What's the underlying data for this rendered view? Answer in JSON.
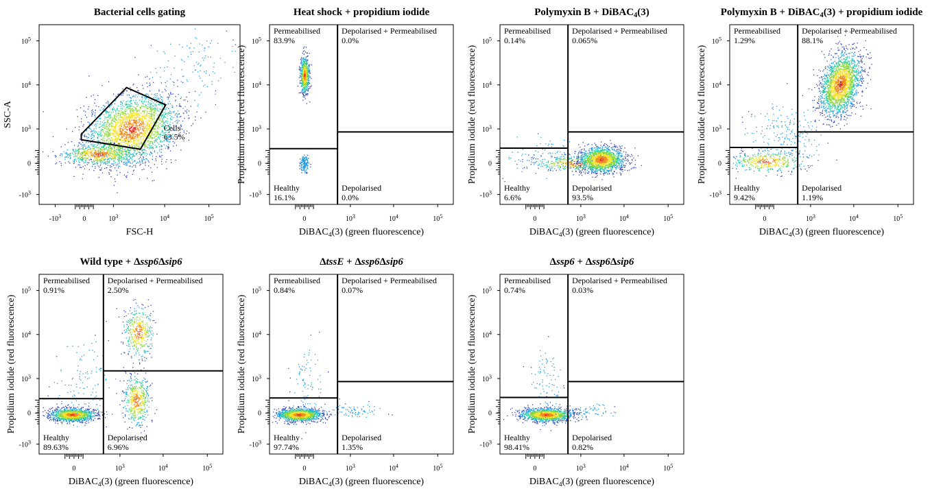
{
  "figure": {
    "panels": [
      {
        "id": "gating",
        "title_runs": [
          {
            "t": "Bacterial cells gating",
            "s": ""
          }
        ],
        "xlabel": "FSC-H",
        "ylabel": "SSC-A",
        "x_ticks": [
          "-10",
          "0",
          "10",
          "10",
          "10"
        ],
        "x_tick_exp": [
          "3",
          "",
          "3",
          "4",
          "5"
        ],
        "y_ticks": [
          "10",
          "10",
          "10",
          "0",
          "-10"
        ],
        "y_tick_exp": [
          "5",
          "4",
          "3",
          "",
          "3"
        ],
        "gate": {
          "name": "Cells",
          "percent": "63.5%"
        }
      },
      {
        "id": "heat-shock",
        "title_runs": [
          {
            "t": "Heat shock + propidium iodide",
            "s": ""
          }
        ],
        "xlabel_runs": [
          {
            "t": "DiBAC",
            "s": ""
          },
          {
            "t": "4",
            "s": "sub"
          },
          {
            "t": "(3) (green fluorescence)",
            "s": ""
          }
        ],
        "ylabel": "Propidium iodide (red fluorescence)",
        "x_ticks": [
          "0",
          "10",
          "10",
          "10"
        ],
        "x_tick_exp": [
          "",
          "3",
          "4",
          "5"
        ],
        "y_ticks": [
          "10",
          "10",
          "10",
          "0",
          "-10"
        ],
        "y_tick_exp": [
          "5",
          "4",
          "3",
          "",
          "3"
        ],
        "quadrants": {
          "top_left": {
            "label": "Permeabilised",
            "value": "83.9%"
          },
          "top_right": {
            "label": "Depolarised + Permeabilised",
            "value": "0.0%"
          },
          "bottom_left": {
            "label": "Healthy",
            "value": "16.1%"
          },
          "bottom_right": {
            "label": "Depolarised",
            "value": "0.0%"
          }
        }
      },
      {
        "id": "polymyxin-dibac",
        "title_runs": [
          {
            "t": "Polymyxin B + DiBAC",
            "s": ""
          },
          {
            "t": "4",
            "s": "sub"
          },
          {
            "t": "(3)",
            "s": ""
          }
        ],
        "xlabel_runs": [
          {
            "t": "DiBAC",
            "s": ""
          },
          {
            "t": "4",
            "s": "sub"
          },
          {
            "t": "(3) (green fluorescence)",
            "s": ""
          }
        ],
        "ylabel": "Propidium iodide (red fluorescence)",
        "x_ticks": [
          "0",
          "10",
          "10",
          "10"
        ],
        "x_tick_exp": [
          "",
          "3",
          "4",
          "5"
        ],
        "y_ticks": [
          "10",
          "10",
          "10",
          "0",
          "-10"
        ],
        "y_tick_exp": [
          "5",
          "4",
          "3",
          "",
          "3"
        ],
        "quadrants": {
          "top_left": {
            "label": "Permeabilised",
            "value": "0.14%"
          },
          "top_right": {
            "label": "Depolarised + Permeabilised",
            "value": "0.065%"
          },
          "bottom_left": {
            "label": "Healthy",
            "value": "6.6%"
          },
          "bottom_right": {
            "label": "Depolarised",
            "value": "93.5%"
          }
        }
      },
      {
        "id": "polymyxin-dibac-pi",
        "title_runs": [
          {
            "t": "Polymyxin B + DiBAC",
            "s": ""
          },
          {
            "t": "4",
            "s": "sub"
          },
          {
            "t": "(3) + propidium iodide",
            "s": ""
          }
        ],
        "xlabel_runs": [
          {
            "t": "DiBAC",
            "s": ""
          },
          {
            "t": "4",
            "s": "sub"
          },
          {
            "t": "(3) (green fluorescence)",
            "s": ""
          }
        ],
        "ylabel": "Propidium iodide (red fluorescence)",
        "x_ticks": [
          "0",
          "10",
          "10",
          "10"
        ],
        "x_tick_exp": [
          "",
          "3",
          "4",
          "5"
        ],
        "y_ticks": [
          "10",
          "10",
          "10",
          "0",
          "-10"
        ],
        "y_tick_exp": [
          "5",
          "4",
          "3",
          "",
          "3"
        ],
        "quadrants": {
          "top_left": {
            "label": "Permeabilised",
            "value": "1.29%"
          },
          "top_right": {
            "label": "Depolarised + Permeabilised",
            "value": "88.1%"
          },
          "bottom_left": {
            "label": "Healthy",
            "value": "9.42%"
          },
          "bottom_right": {
            "label": "Depolarised",
            "value": "1.19%"
          }
        }
      },
      {
        "id": "wild-type",
        "title_runs": [
          {
            "t": "Wild type + Δ",
            "s": ""
          },
          {
            "t": "ssp6",
            "s": "it"
          },
          {
            "t": "Δ",
            "s": ""
          },
          {
            "t": "sip6",
            "s": "it"
          }
        ],
        "xlabel_runs": [
          {
            "t": "DiBAC",
            "s": ""
          },
          {
            "t": "4",
            "s": "sub"
          },
          {
            "t": "(3) (green fluorescence)",
            "s": ""
          }
        ],
        "ylabel": "Propidium iodide (red fluorescence)",
        "x_ticks": [
          "0",
          "10",
          "10",
          "10"
        ],
        "x_tick_exp": [
          "",
          "3",
          "4",
          "5"
        ],
        "y_ticks": [
          "10",
          "10",
          "10",
          "0",
          "-10"
        ],
        "y_tick_exp": [
          "5",
          "4",
          "3",
          "",
          "3"
        ],
        "quadrants": {
          "top_left": {
            "label": "Permeabilised",
            "value": "0.91%"
          },
          "top_right": {
            "label": "Depolarised + Permeabilised",
            "value": "2.50%"
          },
          "bottom_left": {
            "label": "Healthy",
            "value": "89.63%"
          },
          "bottom_right": {
            "label": "Depolarised",
            "value": "6.96%"
          }
        }
      },
      {
        "id": "delta-tsse",
        "title_runs": [
          {
            "t": "Δ",
            "s": ""
          },
          {
            "t": "tssE",
            "s": "it"
          },
          {
            "t": " + Δ",
            "s": ""
          },
          {
            "t": "ssp6",
            "s": "it"
          },
          {
            "t": "Δ",
            "s": ""
          },
          {
            "t": "sip6",
            "s": "it"
          }
        ],
        "xlabel_runs": [
          {
            "t": "DiBAC",
            "s": ""
          },
          {
            "t": "4",
            "s": "sub"
          },
          {
            "t": "(3) (green fluorescence)",
            "s": ""
          }
        ],
        "ylabel": "Propidium iodide (red fluorescence)",
        "x_ticks": [
          "0",
          "10",
          "10",
          "10"
        ],
        "x_tick_exp": [
          "",
          "3",
          "4",
          "5"
        ],
        "y_ticks": [
          "10",
          "10",
          "10",
          "0",
          "-10"
        ],
        "y_tick_exp": [
          "5",
          "4",
          "3",
          "",
          "3"
        ],
        "quadrants": {
          "top_left": {
            "label": "Permeabilised",
            "value": "0.84%"
          },
          "top_right": {
            "label": "Depolarised + Permeabilised",
            "value": "0.07%"
          },
          "bottom_left": {
            "label": "Healthy",
            "value": "97.74%"
          },
          "bottom_right": {
            "label": "Depolarised",
            "value": "1.35%"
          }
        }
      },
      {
        "id": "delta-ssp6",
        "title_runs": [
          {
            "t": "Δ",
            "s": ""
          },
          {
            "t": "ssp6",
            "s": "it"
          },
          {
            "t": " + Δ",
            "s": ""
          },
          {
            "t": "ssp6",
            "s": "it"
          },
          {
            "t": "Δ",
            "s": ""
          },
          {
            "t": "sip6",
            "s": "it"
          }
        ],
        "xlabel_runs": [
          {
            "t": "DiBAC",
            "s": ""
          },
          {
            "t": "4",
            "s": "sub"
          },
          {
            "t": "(3) (green fluorescence)",
            "s": ""
          }
        ],
        "ylabel": "Propidium iodide (red fluorescence)",
        "x_ticks": [
          "0",
          "10",
          "10",
          "10"
        ],
        "x_tick_exp": [
          "",
          "3",
          "4",
          "5"
        ],
        "y_ticks": [
          "10",
          "10",
          "10",
          "0",
          "-10"
        ],
        "y_tick_exp": [
          "5",
          "4",
          "3",
          "",
          "3"
        ],
        "quadrants": {
          "top_left": {
            "label": "Permeabilised",
            "value": "0.74%"
          },
          "top_right": {
            "label": "Depolarised + Permeabilised",
            "value": "0.03%"
          },
          "bottom_left": {
            "label": "Healthy",
            "value": "98.41%"
          },
          "bottom_right": {
            "label": "Depolarised",
            "value": "0.82%"
          }
        }
      }
    ],
    "density_colors": [
      "#2b3fb0",
      "#1f9be0",
      "#21c9a0",
      "#8bd63a",
      "#f2e02a",
      "#f08a1c",
      "#e0201c"
    ]
  },
  "chart_data": [
    {
      "type": "scatter",
      "panel": "gating",
      "title": "Bacterial cells gating",
      "xlabel": "FSC-H",
      "ylabel": "SSC-A",
      "x_scale": "biexponential",
      "y_scale": "biexponential",
      "xlim": [
        -1000,
        100000
      ],
      "ylim": [
        -1000,
        100000
      ],
      "x_ticks": [
        -1000,
        0,
        1000,
        10000,
        100000
      ],
      "y_ticks": [
        -1000,
        0,
        1000,
        10000,
        100000
      ],
      "gate": {
        "name": "Cells",
        "percent": 63.5
      }
    },
    {
      "type": "scatter",
      "panel": "heat-shock",
      "title": "Heat shock + propidium iodide",
      "xlabel": "DiBAC4(3) (green fluorescence)",
      "ylabel": "Propidium iodide (red fluorescence)",
      "x_scale": "biexponential",
      "y_scale": "biexponential",
      "xlim": [
        -1000,
        100000
      ],
      "ylim": [
        -1000,
        100000
      ],
      "x_ticks": [
        0,
        1000,
        10000,
        100000
      ],
      "y_ticks": [
        -1000,
        0,
        1000,
        10000,
        100000
      ],
      "quadrant_percent": {
        "Permeabilised": 83.9,
        "Depolarised + Permeabilised": 0.0,
        "Healthy": 16.1,
        "Depolarised": 0.0
      }
    },
    {
      "type": "scatter",
      "panel": "polymyxin-dibac",
      "title": "Polymyxin B + DiBAC4(3)",
      "xlabel": "DiBAC4(3) (green fluorescence)",
      "ylabel": "Propidium iodide (red fluorescence)",
      "x_scale": "biexponential",
      "y_scale": "biexponential",
      "xlim": [
        -1000,
        100000
      ],
      "ylim": [
        -1000,
        100000
      ],
      "x_ticks": [
        0,
        1000,
        10000,
        100000
      ],
      "y_ticks": [
        -1000,
        0,
        1000,
        10000,
        100000
      ],
      "quadrant_percent": {
        "Permeabilised": 0.14,
        "Depolarised + Permeabilised": 0.065,
        "Healthy": 6.6,
        "Depolarised": 93.5
      }
    },
    {
      "type": "scatter",
      "panel": "polymyxin-dibac-pi",
      "title": "Polymyxin B + DiBAC4(3) + propidium iodide",
      "xlabel": "DiBAC4(3) (green fluorescence)",
      "ylabel": "Propidium iodide (red fluorescence)",
      "x_scale": "biexponential",
      "y_scale": "biexponential",
      "xlim": [
        -1000,
        100000
      ],
      "ylim": [
        -1000,
        100000
      ],
      "x_ticks": [
        0,
        1000,
        10000,
        100000
      ],
      "y_ticks": [
        -1000,
        0,
        1000,
        10000,
        100000
      ],
      "quadrant_percent": {
        "Permeabilised": 1.29,
        "Depolarised + Permeabilised": 88.1,
        "Healthy": 9.42,
        "Depolarised": 1.19
      }
    },
    {
      "type": "scatter",
      "panel": "wild-type",
      "title": "Wild type + Δssp6Δsip6",
      "xlabel": "DiBAC4(3) (green fluorescence)",
      "ylabel": "Propidium iodide (red fluorescence)",
      "x_scale": "biexponential",
      "y_scale": "biexponential",
      "xlim": [
        -1000,
        100000
      ],
      "ylim": [
        -1000,
        100000
      ],
      "x_ticks": [
        0,
        1000,
        10000,
        100000
      ],
      "y_ticks": [
        -1000,
        0,
        1000,
        10000,
        100000
      ],
      "quadrant_percent": {
        "Permeabilised": 0.91,
        "Depolarised + Permeabilised": 2.5,
        "Healthy": 89.63,
        "Depolarised": 6.96
      }
    },
    {
      "type": "scatter",
      "panel": "delta-tsse",
      "title": "ΔtssE + Δssp6Δsip6",
      "xlabel": "DiBAC4(3) (green fluorescence)",
      "ylabel": "Propidium iodide (red fluorescence)",
      "x_scale": "biexponential",
      "y_scale": "biexponential",
      "xlim": [
        -1000,
        100000
      ],
      "ylim": [
        -1000,
        100000
      ],
      "x_ticks": [
        0,
        1000,
        10000,
        100000
      ],
      "y_ticks": [
        -1000,
        0,
        1000,
        10000,
        100000
      ],
      "quadrant_percent": {
        "Permeabilised": 0.84,
        "Depolarised + Permeabilised": 0.07,
        "Healthy": 97.74,
        "Depolarised": 1.35
      }
    },
    {
      "type": "scatter",
      "panel": "delta-ssp6",
      "title": "Δssp6 + Δssp6Δsip6",
      "xlabel": "DiBAC4(3) (green fluorescence)",
      "ylabel": "Propidium iodide (red fluorescence)",
      "x_scale": "biexponential",
      "y_scale": "biexponential",
      "xlim": [
        -1000,
        100000
      ],
      "ylim": [
        -1000,
        100000
      ],
      "x_ticks": [
        0,
        1000,
        10000,
        100000
      ],
      "y_ticks": [
        -1000,
        0,
        1000,
        10000,
        100000
      ],
      "quadrant_percent": {
        "Permeabilised": 0.74,
        "Depolarised + Permeabilised": 0.03,
        "Healthy": 98.41,
        "Depolarised": 0.82
      }
    }
  ]
}
